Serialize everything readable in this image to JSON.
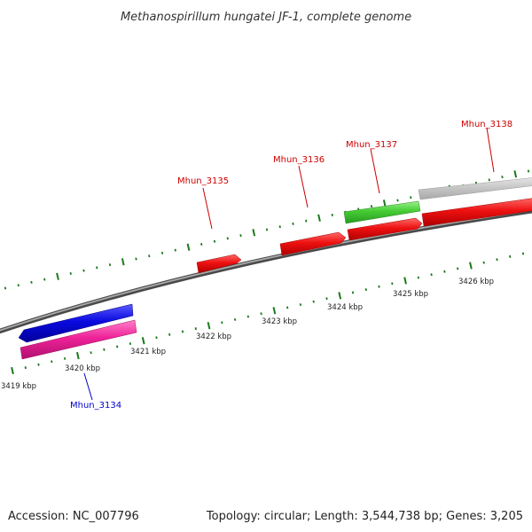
{
  "title": "Methanospirillum hungatei JF-1, complete genome",
  "footer": {
    "accession": "Accession: NC_007796",
    "summary": "Topology: circular; Length: 3,544,738 bp; Genes: 3,205"
  },
  "colors": {
    "background": "#ffffff",
    "backbone": "#808080",
    "tick": "#1a7a1a",
    "gene_label_forward": "#cc0000",
    "gene_label_reverse": "#0000cc",
    "gene_red": "#ee1111",
    "gene_green": "#44cc33",
    "gene_grey": "#c0c0c0",
    "gene_blue": "#0a0ae0",
    "gene_pink": "#ee2299"
  },
  "scale": {
    "unit": "kbp",
    "labels": [
      "3419 kbp",
      "3420 kbp",
      "3421 kbp",
      "3422 kbp",
      "3423 kbp",
      "3424 kbp",
      "3425 kbp",
      "3426 kbp"
    ]
  },
  "gene_labels": [
    {
      "text": "Mhun_3134",
      "strand": "reverse"
    },
    {
      "text": "Mhun_3135",
      "strand": "forward"
    },
    {
      "text": "Mhun_3136",
      "strand": "forward"
    },
    {
      "text": "Mhun_3137",
      "strand": "forward"
    },
    {
      "text": "Mhun_3138",
      "strand": "forward"
    }
  ],
  "features": [
    {
      "strand": "reverse",
      "track": "inner",
      "color": "#0a0ae0",
      "direction": "left"
    },
    {
      "strand": "reverse",
      "track": "outer",
      "color": "#ee2299",
      "direction": "none"
    },
    {
      "strand": "forward",
      "track": "inner",
      "color": "#ee1111",
      "direction": "right"
    },
    {
      "strand": "forward",
      "track": "inner",
      "color": "#ee1111",
      "direction": "right"
    },
    {
      "strand": "forward",
      "track": "inner",
      "color": "#ee1111",
      "direction": "right"
    },
    {
      "strand": "forward",
      "track": "inner",
      "color": "#ee1111",
      "direction": "right"
    },
    {
      "strand": "forward",
      "track": "outer",
      "color": "#44cc33",
      "direction": "none"
    },
    {
      "strand": "forward",
      "track": "outer",
      "color": "#c0c0c0",
      "direction": "none"
    }
  ]
}
